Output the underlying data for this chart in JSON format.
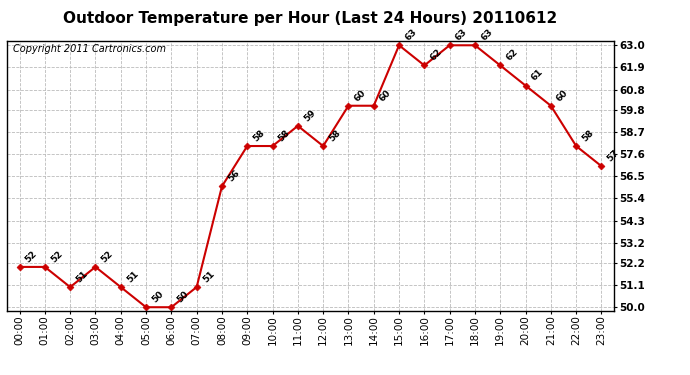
{
  "title": "Outdoor Temperature per Hour (Last 24 Hours) 20110612",
  "copyright": "Copyright 2011 Cartronics.com",
  "hours": [
    "00:00",
    "01:00",
    "02:00",
    "03:00",
    "04:00",
    "05:00",
    "06:00",
    "07:00",
    "08:00",
    "09:00",
    "10:00",
    "11:00",
    "12:00",
    "13:00",
    "14:00",
    "15:00",
    "16:00",
    "17:00",
    "18:00",
    "19:00",
    "20:00",
    "21:00",
    "22:00",
    "23:00"
  ],
  "temps": [
    52,
    52,
    51,
    52,
    51,
    50,
    50,
    51,
    56,
    58,
    58,
    59,
    58,
    60,
    60,
    63,
    62,
    63,
    63,
    62,
    61,
    60,
    58,
    57
  ],
  "line_color": "#cc0000",
  "marker_color": "#cc0000",
  "bg_color": "#ffffff",
  "grid_color": "#bbbbbb",
  "ylim_min": 50.0,
  "ylim_max": 63.0,
  "ytick_values": [
    50.0,
    51.1,
    52.2,
    53.2,
    54.3,
    55.4,
    56.5,
    57.6,
    58.7,
    59.8,
    60.8,
    61.9,
    63.0
  ],
  "title_fontsize": 11,
  "annotation_fontsize": 6.5,
  "copyright_fontsize": 7,
  "tick_fontsize": 7.5
}
